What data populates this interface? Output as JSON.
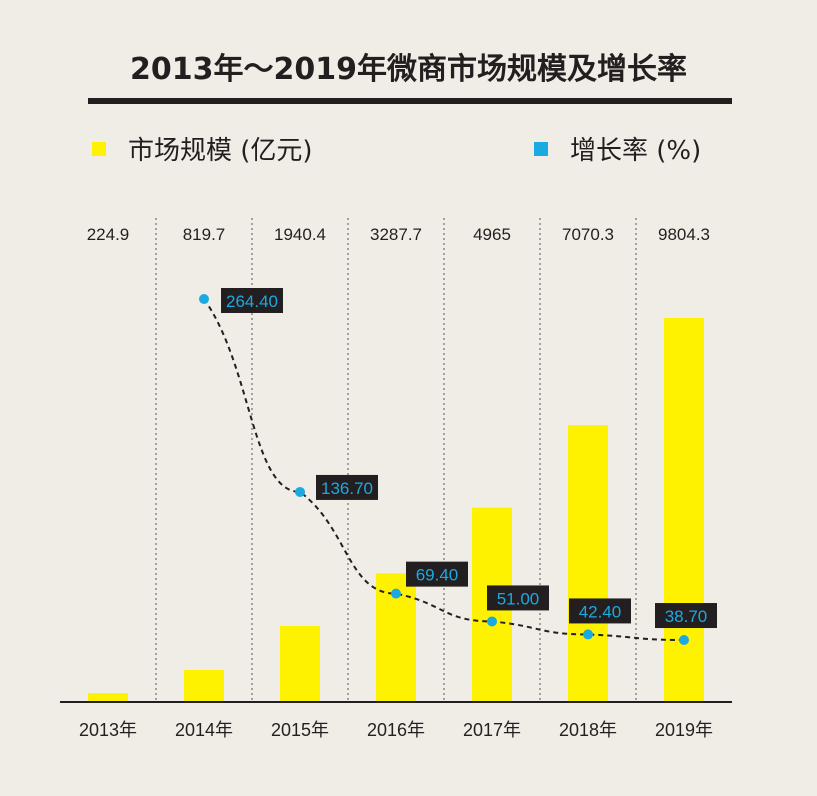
{
  "chart_data": {
    "type": "bar",
    "title": "2013年～2019年微商市场规模及增长率",
    "categories": [
      "2013年",
      "2014年",
      "2015年",
      "2016年",
      "2017年",
      "2018年",
      "2019年"
    ],
    "series": [
      {
        "name": "市场规模 (亿元)",
        "type": "bar",
        "color": "#fff200",
        "values": [
          224.9,
          819.7,
          1940.4,
          3287.7,
          4965,
          7070.3,
          9804.3
        ],
        "labels": [
          "224.9",
          "819.7",
          "1940.4",
          "3287.7",
          "4965",
          "7070.3",
          "9804.3"
        ]
      },
      {
        "name": "增长率 (%)",
        "type": "line",
        "style": "dashed",
        "color": "#1ba9e1",
        "values": [
          null,
          264.4,
          136.7,
          69.4,
          51.0,
          42.4,
          38.7
        ],
        "labels": [
          "",
          "264.40",
          "136.70",
          "69.40",
          "51.00",
          "42.40",
          "38.70"
        ]
      }
    ],
    "legend_position": "top",
    "grid": "vertical dotted separators",
    "background": "#f0ede7",
    "label_box_color": "#231f20"
  }
}
